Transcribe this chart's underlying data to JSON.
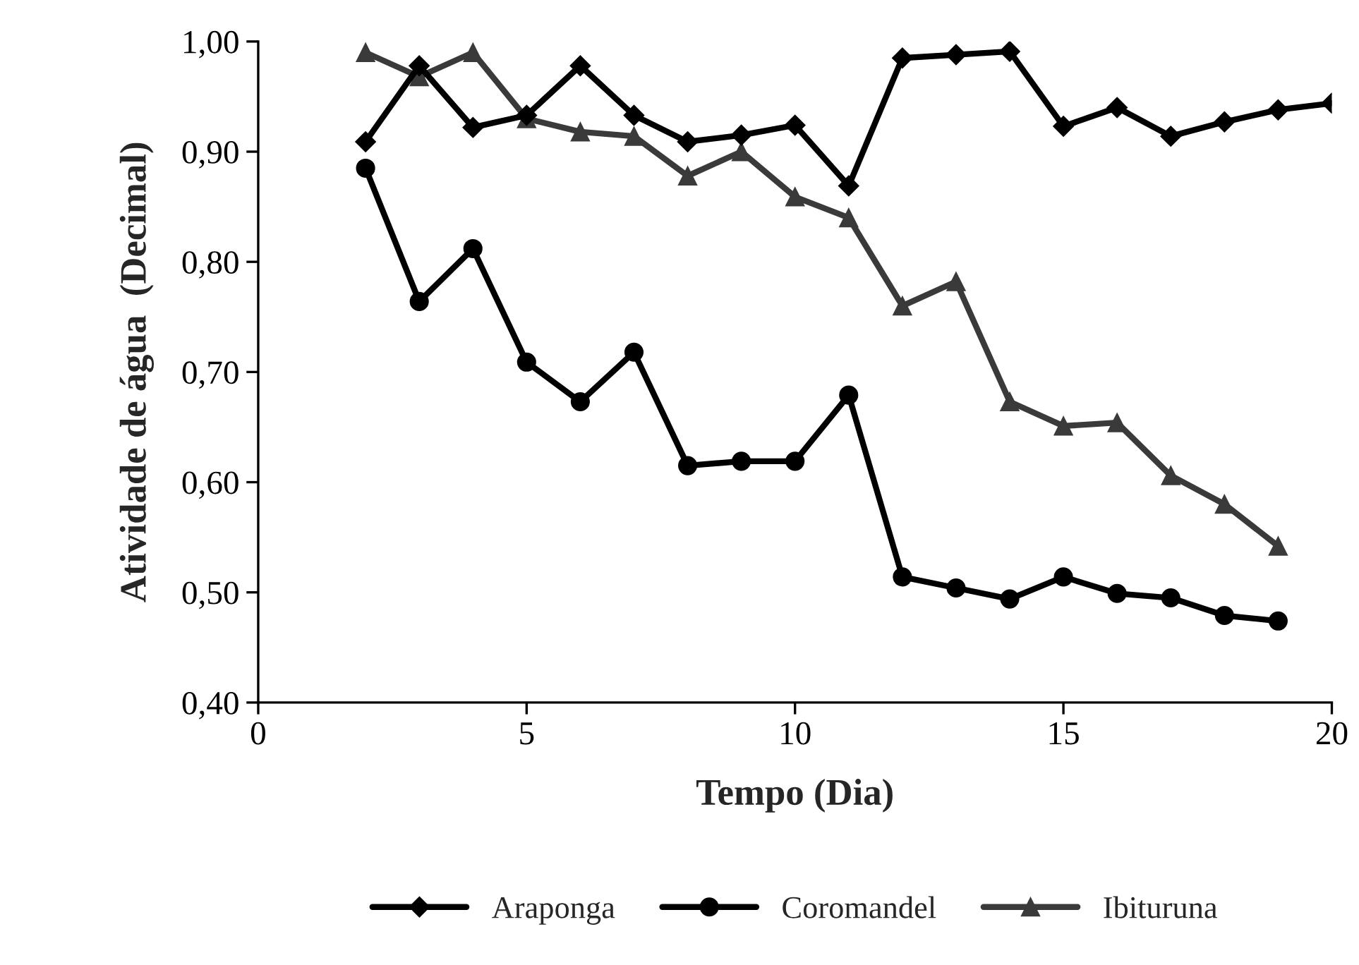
{
  "chart_data": {
    "type": "line",
    "xlabel": "Tempo (Dia)",
    "ylabel": "Atividade de água  (Decimal)",
    "xlim": [
      0,
      20
    ],
    "xticks": [
      0,
      5,
      10,
      15,
      20
    ],
    "ylim": [
      0.4,
      1.0
    ],
    "yticks": [
      {
        "value": 0.4,
        "label": "0,40"
      },
      {
        "value": 0.5,
        "label": "0,50"
      },
      {
        "value": 0.6,
        "label": "0,60"
      },
      {
        "value": 0.7,
        "label": "0,70"
      },
      {
        "value": 0.8,
        "label": "0,80"
      },
      {
        "value": 0.9,
        "label": "0,90"
      },
      {
        "value": 1.0,
        "label": "1,00"
      }
    ],
    "grid": false,
    "legend": "bottom",
    "line_style": "solid",
    "series": [
      {
        "name": "Araponga",
        "color": "#000000",
        "marker": "diamond",
        "x": [
          2,
          3,
          4,
          5,
          6,
          7,
          8,
          9,
          10,
          11,
          12,
          13,
          14,
          15,
          16,
          17,
          18,
          19,
          20
        ],
        "values": [
          0.909,
          0.978,
          0.922,
          0.933,
          0.978,
          0.933,
          0.909,
          0.915,
          0.924,
          0.869,
          0.985,
          0.988,
          0.991,
          0.923,
          0.94,
          0.914,
          0.927,
          0.938,
          0.944
        ]
      },
      {
        "name": "Coromandel",
        "color": "#000000",
        "marker": "circle",
        "x": [
          2,
          3,
          4,
          5,
          6,
          7,
          8,
          9,
          10,
          11,
          12,
          13,
          14,
          15,
          16,
          17,
          18,
          19
        ],
        "values": [
          0.885,
          0.764,
          0.812,
          0.709,
          0.673,
          0.718,
          0.615,
          0.619,
          0.619,
          0.679,
          0.514,
          0.504,
          0.494,
          0.514,
          0.499,
          0.495,
          0.479,
          0.474
        ]
      },
      {
        "name": "Ibituruna",
        "color": "#3a3a3a",
        "marker": "triangle",
        "x": [
          2,
          3,
          4,
          5,
          6,
          7,
          8,
          9,
          10,
          11,
          12,
          13,
          14,
          15,
          16,
          17,
          18,
          19
        ],
        "values": [
          0.99,
          0.968,
          0.99,
          0.93,
          0.918,
          0.914,
          0.878,
          0.9,
          0.859,
          0.84,
          0.76,
          0.782,
          0.673,
          0.651,
          0.654,
          0.606,
          0.58,
          0.542
        ]
      }
    ]
  }
}
